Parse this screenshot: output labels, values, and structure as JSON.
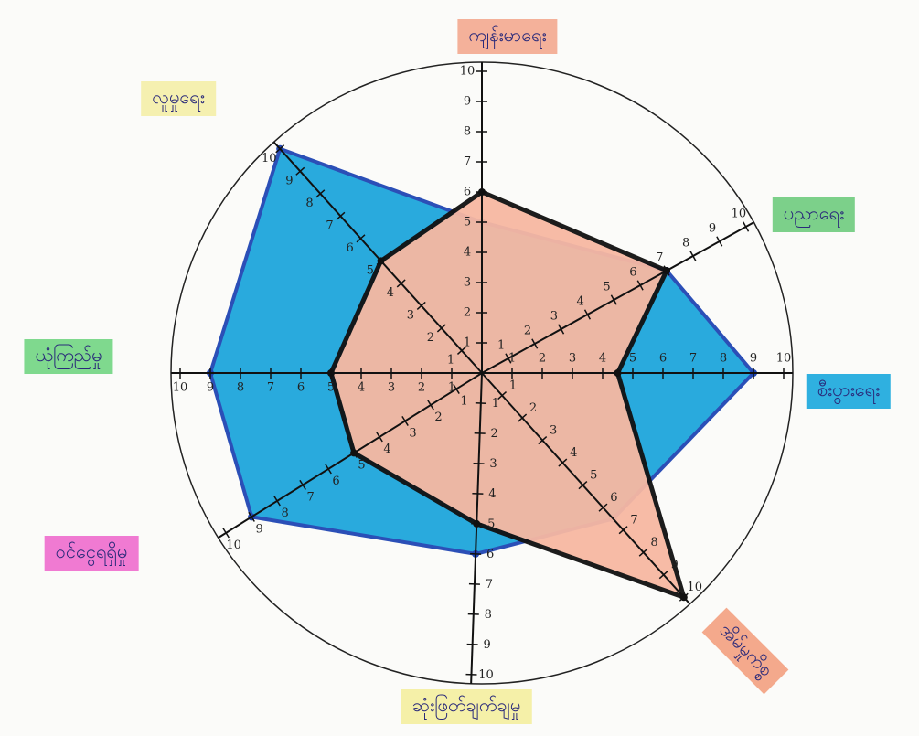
{
  "chart_data": {
    "type": "radar",
    "categories": [
      "ကျန်းမာရေး",
      "ပညာရေး",
      "စီးပွားရေး",
      "အိမ်မှုကိစ္စ",
      "ဆုံးဖြတ်ချက်ချမှု",
      "ဝင်ငွေရရှိမှု",
      "ယုံကြည်မှု",
      "လူမှုရေး"
    ],
    "rlim": [
      0,
      10
    ],
    "rticks": [
      1,
      2,
      3,
      4,
      5,
      6,
      7,
      8,
      9,
      10
    ],
    "series": [
      {
        "color": "#1ea6dc",
        "edge_color": "#2046b4",
        "values": [
          5,
          7,
          9,
          6.5,
          6,
          9,
          9,
          10
        ]
      },
      {
        "color": "#f7b8a2",
        "edge_color": "#111111",
        "values": [
          6,
          7,
          4.5,
          10,
          5,
          5,
          5,
          5
        ]
      }
    ]
  }
}
